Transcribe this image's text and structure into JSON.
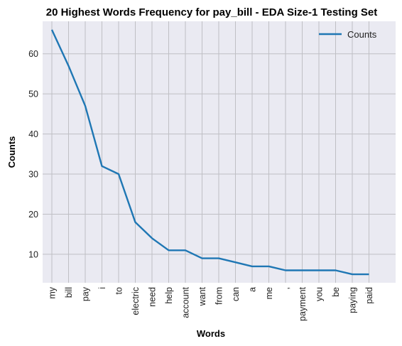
{
  "chart_data": {
    "type": "line",
    "title": "20 Highest Words Frequency for pay_bill - EDA Size-1 Testing Set",
    "xlabel": "Words",
    "ylabel": "Counts",
    "categories": [
      "my",
      "bill",
      "pay",
      "i",
      "to",
      "electric",
      "need",
      "help",
      "account",
      "want",
      "from",
      "can",
      "a",
      "me",
      ",",
      "payment",
      "you",
      "be",
      "paying",
      "paid"
    ],
    "series": [
      {
        "name": "Counts",
        "values": [
          66,
          57,
          47,
          32,
          30,
          18,
          14,
          11,
          11,
          9,
          9,
          8,
          7,
          7,
          6,
          6,
          6,
          6,
          5,
          5
        ]
      }
    ],
    "ylim": [
      2.9,
      68.1
    ],
    "yticks": [
      10,
      20,
      30,
      40,
      50,
      60
    ],
    "grid": true,
    "legend": "top-right",
    "colors": {
      "line": "#1f77b4",
      "plot_bg": "#eaeaf2",
      "grid": "#bfbfc4"
    }
  }
}
